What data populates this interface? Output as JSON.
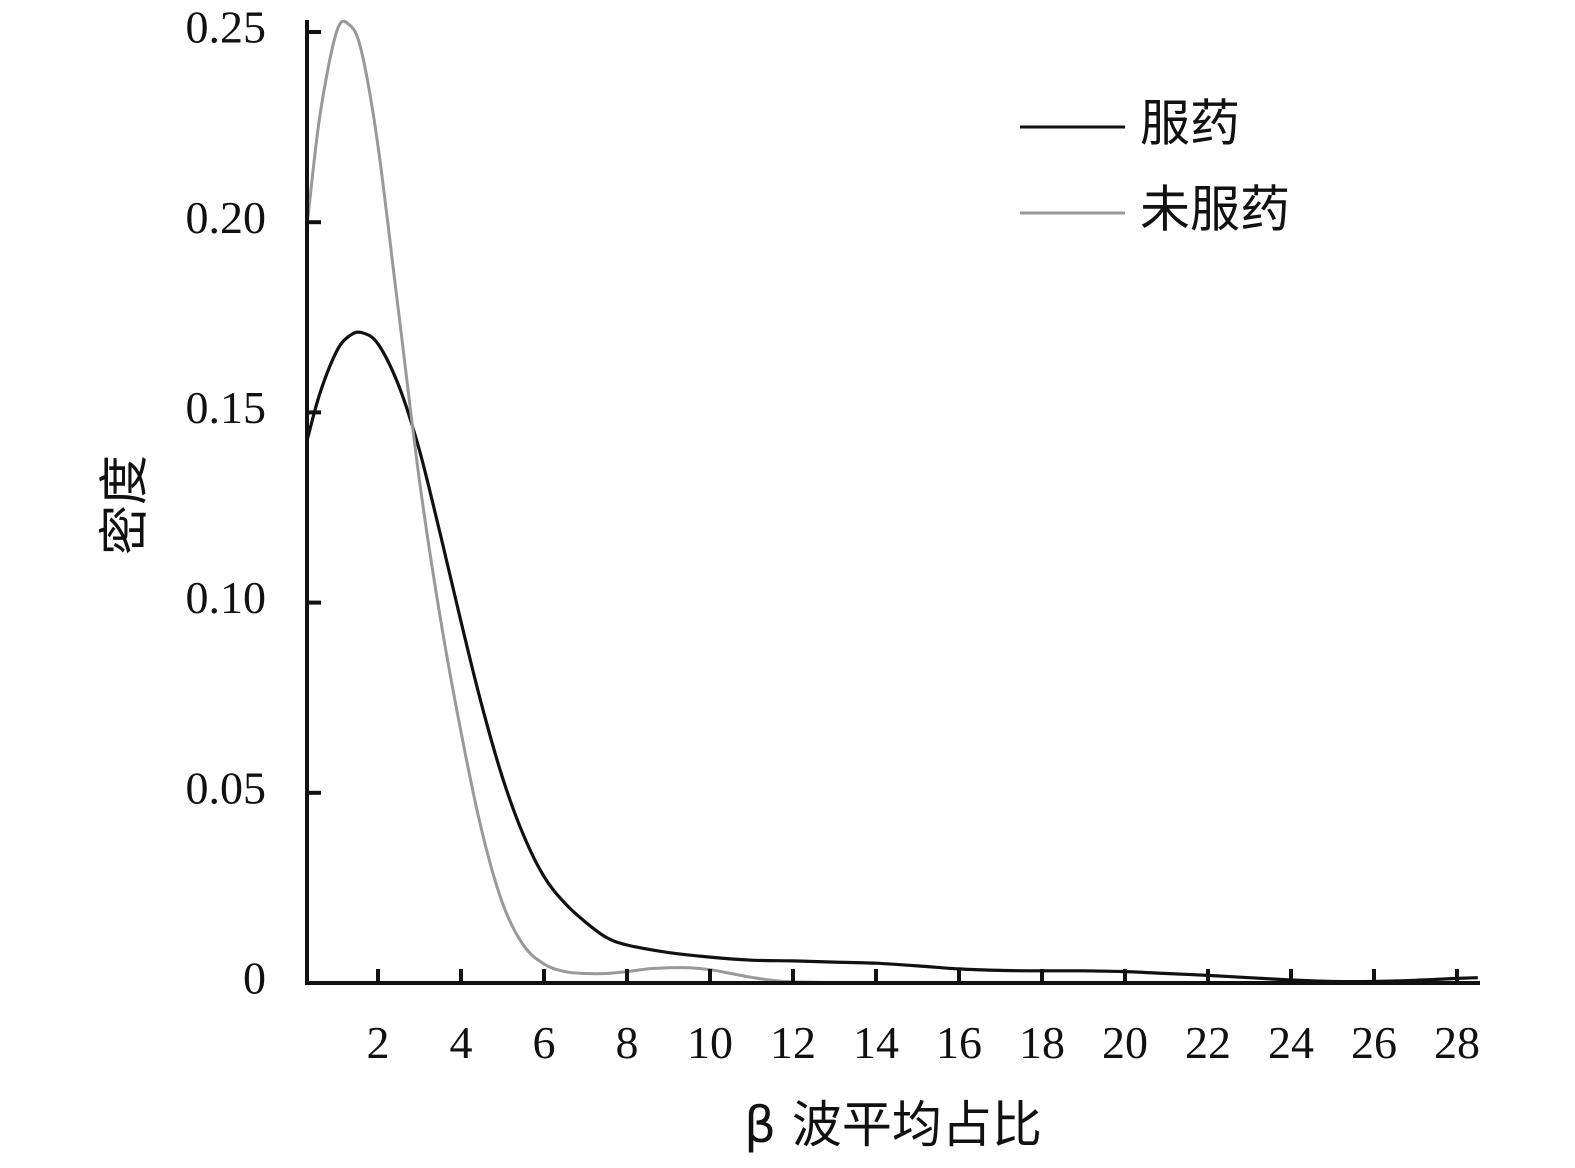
{
  "chart_data": {
    "type": "line",
    "title": "",
    "xlabel": "β 波平均占比",
    "ylabel": "密度",
    "xlim": [
      0.3,
      28.5
    ],
    "ylim": [
      0,
      0.25
    ],
    "x_ticks": [
      2,
      4,
      6,
      8,
      10,
      12,
      14,
      16,
      18,
      20,
      22,
      24,
      26,
      28
    ],
    "x_tick_labels": [
      "2",
      "4",
      "6",
      "8",
      "10",
      "12",
      "14",
      "16",
      "18",
      "20",
      "22",
      "24",
      "26",
      "28"
    ],
    "y_ticks": [
      0,
      0.05,
      0.1,
      0.15,
      0.2,
      0.25
    ],
    "y_tick_labels": [
      "0",
      "0.05",
      "0.10",
      "0.15",
      "0.20",
      "0.25"
    ],
    "grid": false,
    "legend_position": "top-right",
    "series": [
      {
        "name": "服药",
        "color": "#111111",
        "x": [
          0.3,
          0.6,
          1.0,
          1.3,
          1.6,
          2.0,
          2.5,
          3.0,
          3.5,
          4.0,
          4.5,
          5.0,
          5.5,
          6.0,
          6.5,
          7.0,
          7.5,
          8.0,
          9.0,
          10.0,
          11.0,
          12.0,
          13.0,
          14.0,
          15.0,
          16.0,
          17.0,
          18.0,
          19.0,
          20.0,
          21.0,
          22.0,
          23.0,
          24.0,
          25.0,
          26.0,
          27.0,
          28.0,
          28.5
        ],
        "y": [
          0.143,
          0.155,
          0.166,
          0.17,
          0.171,
          0.168,
          0.157,
          0.14,
          0.118,
          0.095,
          0.073,
          0.054,
          0.039,
          0.028,
          0.021,
          0.016,
          0.012,
          0.01,
          0.008,
          0.0068,
          0.006,
          0.0058,
          0.0055,
          0.0052,
          0.0045,
          0.0037,
          0.0033,
          0.0032,
          0.0032,
          0.003,
          0.0025,
          0.002,
          0.0014,
          0.0008,
          0.0004,
          0.0004,
          0.0007,
          0.0012,
          0.0014
        ]
      },
      {
        "name": "未服药",
        "color": "#999999",
        "x": [
          0.3,
          0.6,
          1.0,
          1.3,
          1.6,
          2.0,
          2.5,
          3.0,
          3.5,
          4.0,
          4.5,
          5.0,
          5.5,
          6.0,
          6.5,
          7.0,
          7.5,
          8.0,
          8.5,
          9.0,
          9.5,
          10.0,
          10.5,
          11.0,
          11.5,
          12.0,
          13.0,
          14.0,
          16.0,
          18.0,
          20.0,
          22.0,
          24.0,
          26.0,
          28.0,
          28.5
        ],
        "y": [
          0.2,
          0.228,
          0.25,
          0.252,
          0.245,
          0.22,
          0.176,
          0.132,
          0.096,
          0.066,
          0.04,
          0.021,
          0.01,
          0.005,
          0.003,
          0.0025,
          0.0025,
          0.003,
          0.0037,
          0.004,
          0.004,
          0.0035,
          0.0025,
          0.0015,
          0.0007,
          0.0003,
          0.0001,
          0.0,
          0.0,
          0.0,
          0.0,
          0.0,
          0.0,
          0.0,
          0.0,
          0.0
        ]
      }
    ]
  }
}
